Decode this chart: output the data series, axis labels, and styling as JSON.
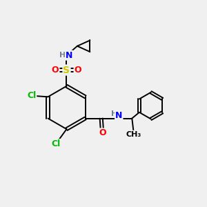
{
  "bg_color": "#f0f0f0",
  "atom_colors": {
    "C": "#000000",
    "H": "#708090",
    "N": "#0000ff",
    "O": "#ff0000",
    "S": "#cccc00",
    "Cl": "#00bb00"
  },
  "font_size": 9,
  "fig_size": [
    3.0,
    3.0
  ],
  "dpi": 100,
  "lw": 1.4
}
